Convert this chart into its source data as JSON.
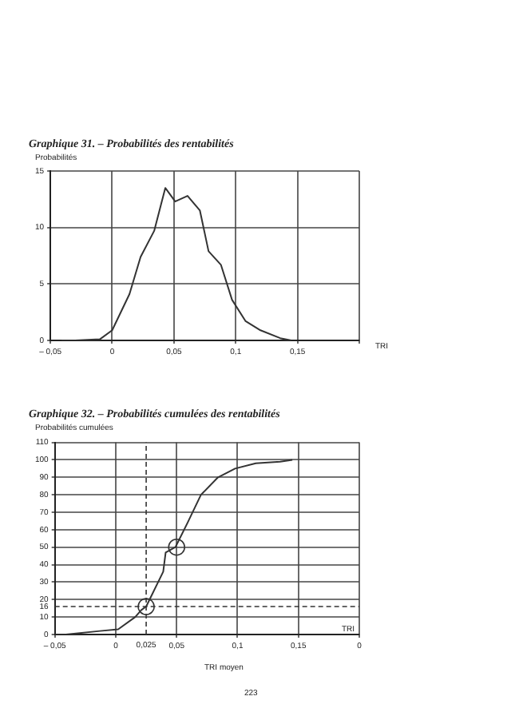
{
  "chart_data": [
    {
      "type": "line",
      "title": "Graphique 31. – Probabilités des rentabilités",
      "ylabel": "Probabilités",
      "xlabel": "TRI",
      "color": "#333333",
      "x": [
        -0.041,
        -0.03,
        -0.01,
        0,
        0.014,
        0.023,
        0.034,
        0.043,
        0.051,
        0.061,
        0.071,
        0.078,
        0.088,
        0.097,
        0.108,
        0.12,
        0.136,
        0.145
      ],
      "values": [
        0,
        0,
        0.1,
        0.9,
        4.1,
        7.4,
        9.7,
        13.5,
        12.3,
        12.8,
        11.5,
        7.9,
        6.7,
        3.6,
        1.7,
        0.9,
        0.2,
        0
      ],
      "xlim": [
        -0.05,
        0.2
      ],
      "xticks": [
        {
          "value": -0.05,
          "label": "– 0,05"
        },
        0,
        {
          "value": 0.05,
          "label": "0,05"
        },
        {
          "value": 0.1,
          "label": "0,1"
        },
        {
          "value": 0.15,
          "label": "0,15"
        },
        {
          "value": 0.2,
          "label": null
        }
      ],
      "ylim": [
        0,
        15
      ],
      "yticks": [
        0,
        5,
        10,
        15
      ],
      "grid": true
    },
    {
      "type": "line",
      "title": "Graphique 32. – Probabilités cumulées des rentabilités",
      "ylabel": "Probabilités cumulées",
      "xlabel": "TRI moyen",
      "series": [
        {
          "type": "line",
          "color": "#333333",
          "x": [
            -0.05,
            -0.041,
            -0.013,
            0.002,
            0.016,
            0.021,
            0.025,
            0.039,
            0.041,
            0.049,
            0.059,
            0.07,
            0.084,
            0.098,
            0.115,
            0.135,
            0.145
          ],
          "values": [
            0,
            0,
            2,
            3,
            10,
            14,
            16,
            36,
            47,
            50,
            64,
            80,
            90,
            95,
            98,
            99,
            100
          ]
        },
        {
          "type": "scatter",
          "marker": "circle",
          "color": "#333333",
          "x": [
            0.025,
            0.05
          ],
          "values": [
            16,
            50
          ]
        }
      ],
      "xlim": [
        -0.05,
        0.2
      ],
      "xticks": [
        {
          "value": -0.05,
          "label": "– 0,05"
        },
        0,
        {
          "value": 0.05,
          "label": "0,05"
        },
        {
          "value": 0.1,
          "label": "0,1"
        },
        {
          "value": 0.15,
          "label": "0,15"
        },
        {
          "value": 0.2,
          "label": "0"
        }
      ],
      "ylim": [
        0,
        110
      ],
      "yticks": [
        0,
        10,
        20,
        30,
        40,
        50,
        60,
        70,
        80,
        90,
        100,
        110
      ],
      "grid": true,
      "ref_lines": [
        {
          "axis": "y",
          "value": 16,
          "label": "16",
          "line_style": "dashed"
        },
        {
          "axis": "x",
          "value": 0.025,
          "label": "0,025",
          "line_style": "dashed"
        }
      ],
      "annotations": [
        "TRI",
        "223"
      ]
    }
  ]
}
